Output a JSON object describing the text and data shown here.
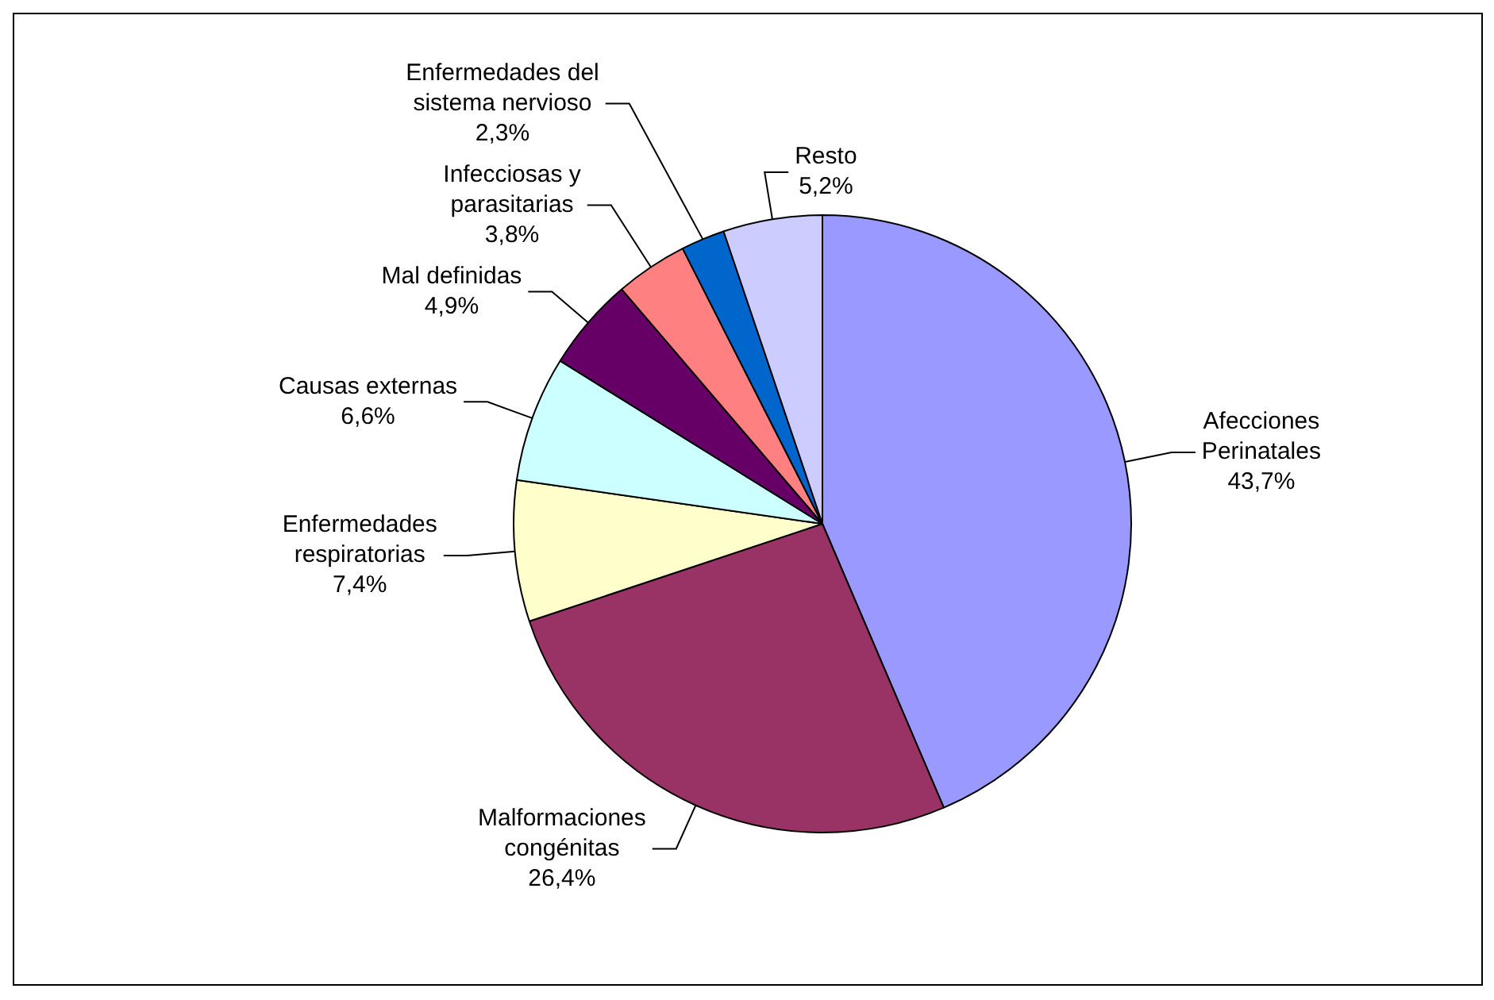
{
  "chart_data": {
    "type": "pie",
    "categories": [
      "Afecciones\nPerinatales",
      "Malformaciones\ncongénitas",
      "Enfermedades\nrespiratorias",
      "Causas externas",
      "Mal definidas",
      "Infecciosas y\nparasitarias",
      "Enfermedades del\nsistema nervioso",
      "Resto"
    ],
    "values": [
      43.7,
      26.4,
      7.4,
      6.6,
      4.9,
      3.8,
      2.3,
      5.2
    ],
    "value_labels": [
      "43,7%",
      "26,4%",
      "7,4%",
      "6,6%",
      "4,9%",
      "3,8%",
      "2,3%",
      "5,2%"
    ],
    "colors": [
      "#9999ff",
      "#993366",
      "#ffffcc",
      "#ccffff",
      "#660066",
      "#ff8080",
      "#0066cc",
      "#ccccff"
    ],
    "legend": false
  }
}
